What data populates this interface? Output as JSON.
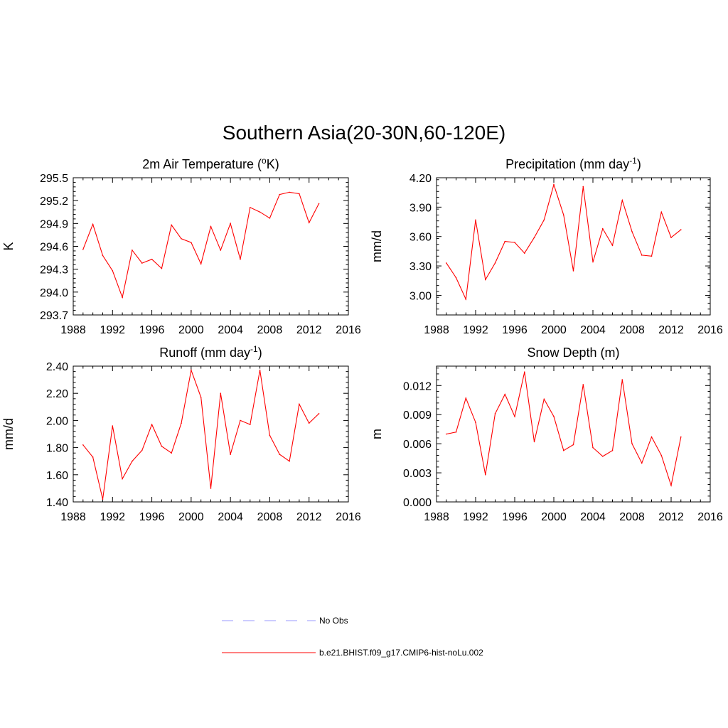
{
  "title": "Southern Asia(20-30N,60-120E)",
  "legend": [
    {
      "label": "No Obs",
      "color": "#9999ff",
      "style": "dashed"
    },
    {
      "label": "b.e21.BHIST.f09_g17.CMIP6-hist-noLu.002",
      "color": "#ff0000",
      "style": "solid"
    }
  ],
  "chart_data": [
    {
      "type": "line",
      "title": "2m Air Temperature (",
      "title_sup": "o",
      "title_suffix": "K)",
      "ylabel": "K",
      "xlim": [
        1988,
        2016
      ],
      "xticks": [
        1988,
        1992,
        1996,
        2000,
        2004,
        2008,
        2012,
        2016
      ],
      "ylim": [
        293.7,
        295.5
      ],
      "yticks": [
        "293.7",
        "294.0",
        "294.3",
        "294.6",
        "294.9",
        "295.2",
        "295.5"
      ],
      "series": [
        {
          "color": "#ff0000",
          "x": [
            1989,
            1990,
            1991,
            1992,
            1993,
            1994,
            1995,
            1996,
            1997,
            1998,
            1999,
            2000,
            2001,
            2002,
            2003,
            2004,
            2005,
            2006,
            2007,
            2008,
            2009,
            2010,
            2011,
            2012,
            2013
          ],
          "y": [
            294.56,
            294.89,
            294.48,
            294.28,
            293.93,
            294.55,
            294.38,
            294.43,
            294.31,
            294.88,
            294.7,
            294.65,
            294.37,
            294.86,
            294.55,
            294.9,
            294.43,
            295.11,
            295.05,
            294.97,
            295.28,
            295.31,
            295.29,
            294.91,
            295.16
          ]
        }
      ]
    },
    {
      "type": "line",
      "title": "Precipitation (mm day",
      "title_sup": "-1",
      "title_suffix": ")",
      "ylabel": "mm/d",
      "xlim": [
        1988,
        2016
      ],
      "xticks": [
        1988,
        1992,
        1996,
        2000,
        2004,
        2008,
        2012,
        2016
      ],
      "ylim": [
        2.8,
        4.2
      ],
      "yticks": [
        "3.00",
        "3.30",
        "3.60",
        "3.90",
        "4.20"
      ],
      "series": [
        {
          "color": "#ff0000",
          "x": [
            1989,
            1990,
            1991,
            1992,
            1993,
            1994,
            1995,
            1996,
            1997,
            1998,
            1999,
            2000,
            2001,
            2002,
            2003,
            2004,
            2005,
            2006,
            2007,
            2008,
            2009,
            2010,
            2011,
            2012,
            2013
          ],
          "y": [
            3.33,
            3.18,
            2.96,
            3.77,
            3.16,
            3.33,
            3.55,
            3.54,
            3.43,
            3.59,
            3.77,
            4.13,
            3.82,
            3.25,
            4.11,
            3.34,
            3.68,
            3.51,
            3.97,
            3.65,
            3.41,
            3.4,
            3.85,
            3.59,
            3.67
          ]
        }
      ]
    },
    {
      "type": "line",
      "title": "Runoff (mm day",
      "title_sup": "-1",
      "title_suffix": ")",
      "ylabel": "mm/d",
      "xlim": [
        1988,
        2016
      ],
      "xticks": [
        1988,
        1992,
        1996,
        2000,
        2004,
        2008,
        2012,
        2016
      ],
      "ylim": [
        1.4,
        2.4
      ],
      "yticks": [
        "1.40",
        "1.60",
        "1.80",
        "2.00",
        "2.20",
        "2.40"
      ],
      "series": [
        {
          "color": "#ff0000",
          "x": [
            1989,
            1990,
            1991,
            1992,
            1993,
            1994,
            1995,
            1996,
            1997,
            1998,
            1999,
            2000,
            2001,
            2002,
            2003,
            2004,
            2005,
            2006,
            2007,
            2008,
            2009,
            2010,
            2011,
            2012,
            2013
          ],
          "y": [
            1.82,
            1.73,
            1.42,
            1.96,
            1.57,
            1.7,
            1.78,
            1.97,
            1.81,
            1.76,
            1.98,
            2.37,
            2.17,
            1.5,
            2.2,
            1.75,
            2.0,
            1.97,
            2.37,
            1.89,
            1.75,
            1.7,
            2.12,
            1.98,
            2.05
          ]
        }
      ]
    },
    {
      "type": "line",
      "title": "Snow Depth (m)",
      "title_sup": "",
      "title_suffix": "",
      "ylabel": "m",
      "xlim": [
        1988,
        2016
      ],
      "xticks": [
        1988,
        1992,
        1996,
        2000,
        2004,
        2008,
        2012,
        2016
      ],
      "ylim": [
        0.0,
        0.014
      ],
      "yticks": [
        "0.000",
        "0.003",
        "0.006",
        "0.009",
        "0.012"
      ],
      "series": [
        {
          "color": "#ff0000",
          "x": [
            1989,
            1990,
            1991,
            1992,
            1993,
            1994,
            1995,
            1996,
            1997,
            1998,
            1999,
            2000,
            2001,
            2002,
            2003,
            2004,
            2005,
            2006,
            2007,
            2008,
            2009,
            2010,
            2011,
            2012,
            2013
          ],
          "y": [
            0.007,
            0.0072,
            0.0107,
            0.0082,
            0.0028,
            0.0091,
            0.0111,
            0.0088,
            0.0134,
            0.0062,
            0.0106,
            0.0088,
            0.0053,
            0.0059,
            0.0121,
            0.0056,
            0.0047,
            0.0053,
            0.0126,
            0.006,
            0.004,
            0.0067,
            0.0048,
            0.0017,
            0.0067
          ]
        }
      ]
    }
  ]
}
